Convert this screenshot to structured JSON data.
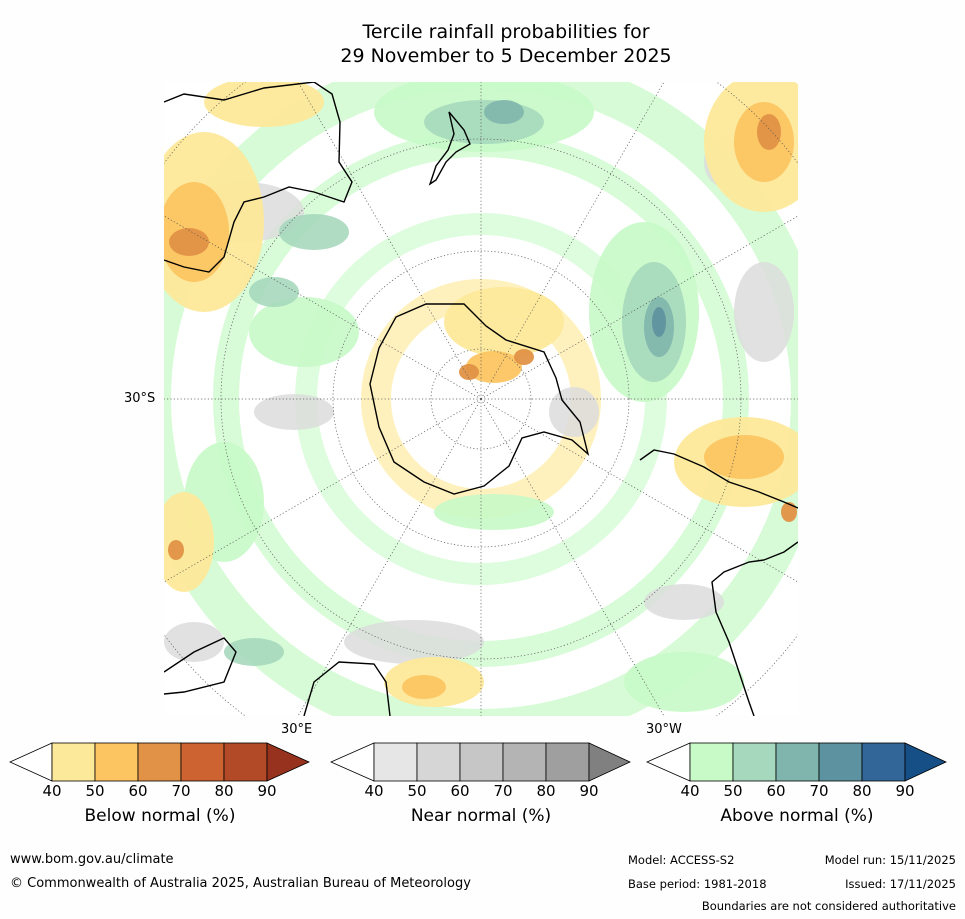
{
  "title": {
    "line1": "Tercile rainfall probabilities for",
    "line2": "29 November to 5 December 2025"
  },
  "map": {
    "lat_label": "30°S",
    "lon_label_east": "30°E",
    "lon_label_west": "30°W"
  },
  "colorbars": [
    {
      "label": "Below normal (%)",
      "ticks": [
        "40",
        "50",
        "60",
        "70",
        "80",
        "90"
      ],
      "colors": [
        "#ffffff",
        "#fde99a",
        "#fcc562",
        "#e29246",
        "#cc6331",
        "#b24a28",
        "#97321e"
      ]
    },
    {
      "label": "Near normal (%)",
      "ticks": [
        "40",
        "50",
        "60",
        "70",
        "80",
        "90"
      ],
      "colors": [
        "#ffffff",
        "#e6e6e6",
        "#d6d6d6",
        "#c6c6c6",
        "#b4b4b4",
        "#9f9f9f",
        "#808080"
      ]
    },
    {
      "label": "Above normal (%)",
      "ticks": [
        "40",
        "50",
        "60",
        "70",
        "80",
        "90"
      ],
      "colors": [
        "#ffffff",
        "#c8fac8",
        "#a6d8bd",
        "#7fb5ac",
        "#5d92a0",
        "#336698",
        "#164e86"
      ]
    }
  ],
  "footer": {
    "website": "www.bom.gov.au/climate",
    "copyright": "© Commonwealth of Australia 2025, Australian Bureau of Meteorology",
    "model": "Model: ACCESS-S2",
    "model_run": "Model run: 15/11/2025",
    "base_period": "Base period: 1981-2018",
    "issued": "Issued: 17/11/2025",
    "disclaimer": "Boundaries are not considered authoritative"
  }
}
